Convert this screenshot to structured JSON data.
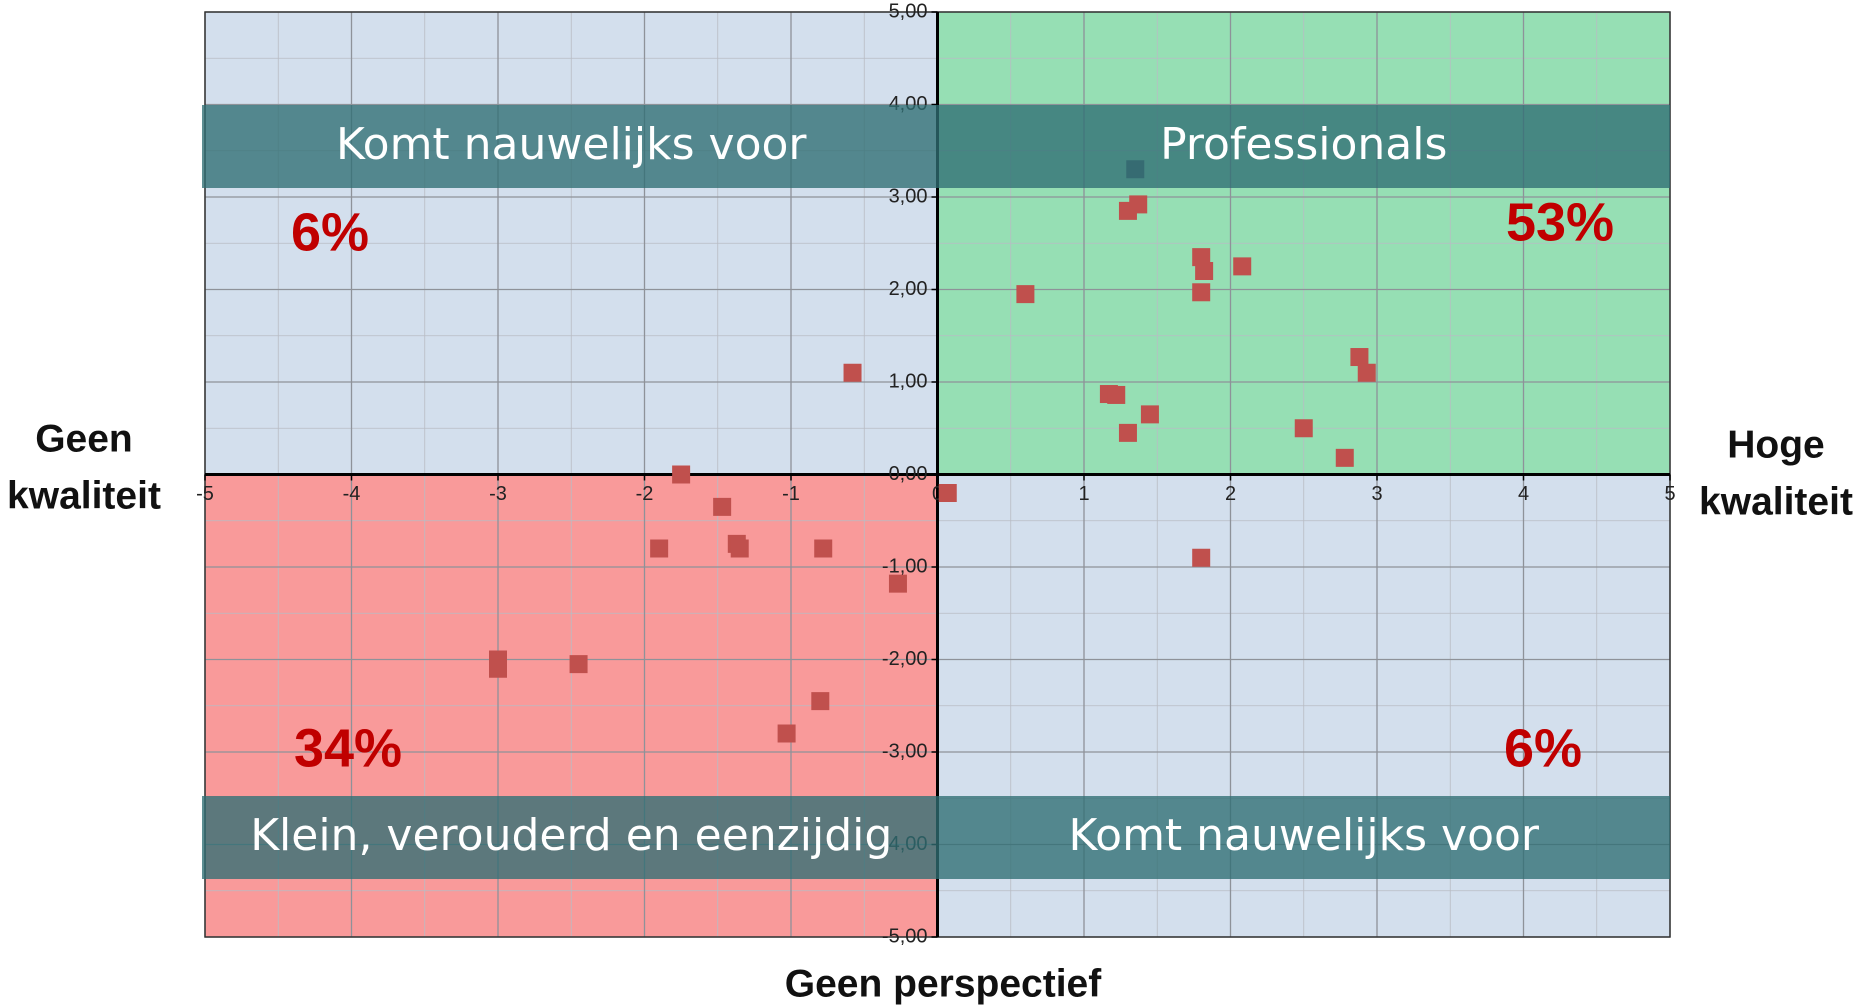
{
  "chart_data": {
    "type": "scatter",
    "xlim": [
      -5,
      5
    ],
    "ylim": [
      -5,
      5
    ],
    "xticks": [
      -5,
      -4,
      -3,
      -2,
      -1,
      0,
      1,
      2,
      3,
      4,
      5
    ],
    "yticks": [
      {
        "value": 5,
        "label": "5,00"
      },
      {
        "value": 4,
        "label": "4,00"
      },
      {
        "value": 3,
        "label": "3,00"
      },
      {
        "value": 2,
        "label": "2,00"
      },
      {
        "value": 1,
        "label": "1,00"
      },
      {
        "value": 0,
        "label": "0,00"
      },
      {
        "value": -1,
        "label": "-1,00"
      },
      {
        "value": -2,
        "label": "-2,00"
      },
      {
        "value": -3,
        "label": "-3,00"
      },
      {
        "value": -4,
        "label": "-4,00"
      },
      {
        "value": -5,
        "label": "-5,00"
      }
    ],
    "grid": true,
    "categories": [
      "Komt nauwelijks voor",
      "Professionals",
      "Klein, verouderd en eenzijdig",
      "Komt nauwelijks voor"
    ],
    "values": [
      6,
      53,
      34,
      6
    ],
    "value_labels": [
      "6%",
      "53%",
      "34%",
      "6%"
    ],
    "quadrant_colors": [
      "#d3dfed",
      "#96dfb4",
      "#f99a9a",
      "#d3dfed"
    ],
    "band_color": "#2f6e73",
    "left_label": [
      "Geen",
      "kwaliteit"
    ],
    "right_label": [
      "Hoge",
      "kwaliteit"
    ],
    "bottom_label": "Geen perspectief",
    "series": [
      {
        "color": "#c0504d",
        "x": [
          1.3,
          1.37,
          1.8,
          1.82,
          2.08,
          1.8,
          0.6,
          2.88,
          2.93,
          1.17,
          1.22,
          1.45,
          1.3,
          2.5,
          2.78,
          -0.58,
          -1.75,
          -1.47,
          -1.37,
          -1.35,
          -1.9,
          -0.78,
          -0.27,
          -3,
          -3,
          -2.45,
          -0.8,
          -1.03,
          0.07,
          1.8
        ],
        "y": [
          2.85,
          2.92,
          2.35,
          2.2,
          2.25,
          1.97,
          1.95,
          1.27,
          1.1,
          0.87,
          0.86,
          0.65,
          0.45,
          0.5,
          0.18,
          1.1,
          0,
          -0.35,
          -0.75,
          -0.8,
          -0.8,
          -0.8,
          -1.18,
          -2,
          -2.1,
          -2.05,
          -2.45,
          -2.8,
          -0.2,
          -0.9
        ]
      },
      {
        "color": "#4f5f6f",
        "x": [
          1.35
        ],
        "y": [
          3.3
        ]
      }
    ]
  }
}
